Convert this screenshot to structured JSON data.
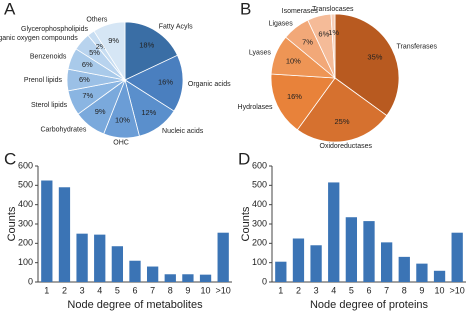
{
  "chart_data": [
    {
      "type": "pie",
      "panel": "A",
      "categories": [
        "Fatty Acyls",
        "Organic acids",
        "Nucleic acids",
        "OHC",
        "Carbohydrates",
        "Sterol lipids",
        "Prenol lipids",
        "Benzenoids",
        "Organic oxygen compounds",
        "Glycerophospholipids",
        "Others"
      ],
      "values": [
        18,
        16,
        12,
        10,
        9,
        7,
        6,
        6,
        5,
        2,
        9
      ],
      "value_labels": [
        "18%",
        "16%",
        "12%",
        "10%",
        "9%",
        "7%",
        "6%",
        "6%",
        "5%",
        "2%",
        "9%"
      ],
      "colors": [
        "#3a6ea5",
        "#4a7fbf",
        "#5a8fcc",
        "#6b9dd6",
        "#7aa9dc",
        "#8ab5e2",
        "#9bc0e6",
        "#a9caea",
        "#b8d3ee",
        "#c7ddf2",
        "#d6e6f5"
      ]
    },
    {
      "type": "pie",
      "panel": "B",
      "categories": [
        "Transferases",
        "Oxidoreductases",
        "Hydrolases",
        "Lyases",
        "Ligases",
        "Isomerases",
        "Translocases"
      ],
      "values": [
        35,
        25,
        16,
        10,
        7,
        6,
        1
      ],
      "value_labels": [
        "35%",
        "25%",
        "16%",
        "10%",
        "7%",
        "6%",
        "1%"
      ],
      "colors": [
        "#b85a20",
        "#d6712f",
        "#e8823a",
        "#ee9555",
        "#f2a878",
        "#f5bb98",
        "#f8cfb8"
      ]
    },
    {
      "type": "bar",
      "panel": "C",
      "xlabel": "Node degree of metabolites",
      "ylabel": "Counts",
      "categories": [
        "1",
        "2",
        "3",
        "4",
        "5",
        "6",
        "7",
        "8",
        "9",
        "10",
        ">10"
      ],
      "values": [
        525,
        490,
        250,
        245,
        185,
        110,
        80,
        40,
        40,
        38,
        255
      ],
      "color": "#3b74b5",
      "ylim": [
        0,
        600
      ],
      "yticks": [
        0,
        100,
        200,
        300,
        400,
        500,
        600
      ]
    },
    {
      "type": "bar",
      "panel": "D",
      "xlabel": "Node degree of proteins",
      "ylabel": "Counts",
      "categories": [
        "1",
        "2",
        "3",
        "4",
        "5",
        "6",
        "7",
        "8",
        "9",
        "10",
        ">10"
      ],
      "values": [
        105,
        225,
        190,
        515,
        335,
        315,
        205,
        130,
        95,
        58,
        255
      ],
      "color": "#3b74b5",
      "ylim": [
        0,
        600
      ],
      "yticks": [
        0,
        100,
        200,
        300,
        400,
        500,
        600
      ]
    }
  ]
}
